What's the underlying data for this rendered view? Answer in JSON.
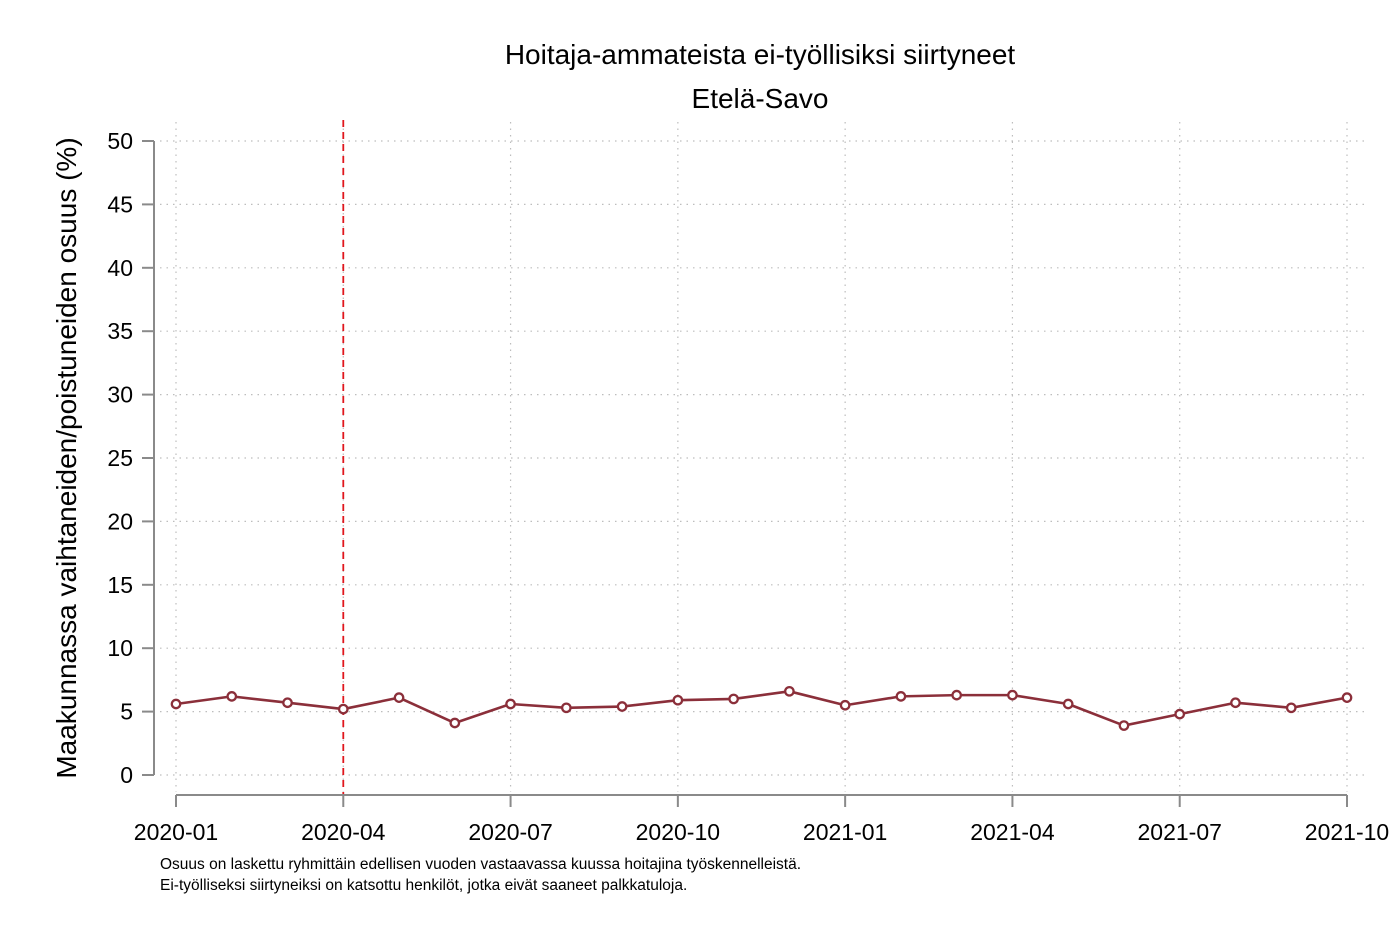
{
  "chart_data": {
    "type": "line",
    "title": "Hoitaja-ammateista ei-työllisiksi siirtyneet",
    "subtitle": "Etelä-Savo",
    "xlabel": "",
    "ylabel": "Maakunnassa vaihtaneiden/poistuneiden osuus (%)",
    "ylim": [
      0,
      50
    ],
    "yticks": [
      0,
      5,
      10,
      15,
      20,
      25,
      30,
      35,
      40,
      45,
      50
    ],
    "x": [
      "2020-01",
      "2020-02",
      "2020-03",
      "2020-04",
      "2020-05",
      "2020-06",
      "2020-07",
      "2020-08",
      "2020-09",
      "2020-10",
      "2020-11",
      "2020-12",
      "2021-01",
      "2021-02",
      "2021-03",
      "2021-04",
      "2021-05",
      "2021-06",
      "2021-07",
      "2021-08",
      "2021-09",
      "2021-10"
    ],
    "xticks": [
      "2020-01",
      "2020-04",
      "2020-07",
      "2020-10",
      "2021-01",
      "2021-04",
      "2021-07",
      "2021-10"
    ],
    "series": [
      {
        "values": [
          5.6,
          6.2,
          5.7,
          5.2,
          6.1,
          4.1,
          5.6,
          5.3,
          5.4,
          5.9,
          6.0,
          6.6,
          5.5,
          6.2,
          6.3,
          6.3,
          5.6,
          3.9,
          4.8,
          5.7,
          5.3,
          6.1
        ],
        "color": "#8B2F3A"
      }
    ],
    "reference_line": {
      "x": "2020-04",
      "color": "#E0161D",
      "style": "dashed"
    },
    "grid": true,
    "notes": [
      "Osuus on laskettu ryhmittäin edellisen vuoden vastaavassa kuussa hoitajina työskennelleistä.",
      "Ei-työlliseksi siirtyneiksi on katsottu henkilöt, jotka eivät saaneet palkkatuloja."
    ]
  }
}
